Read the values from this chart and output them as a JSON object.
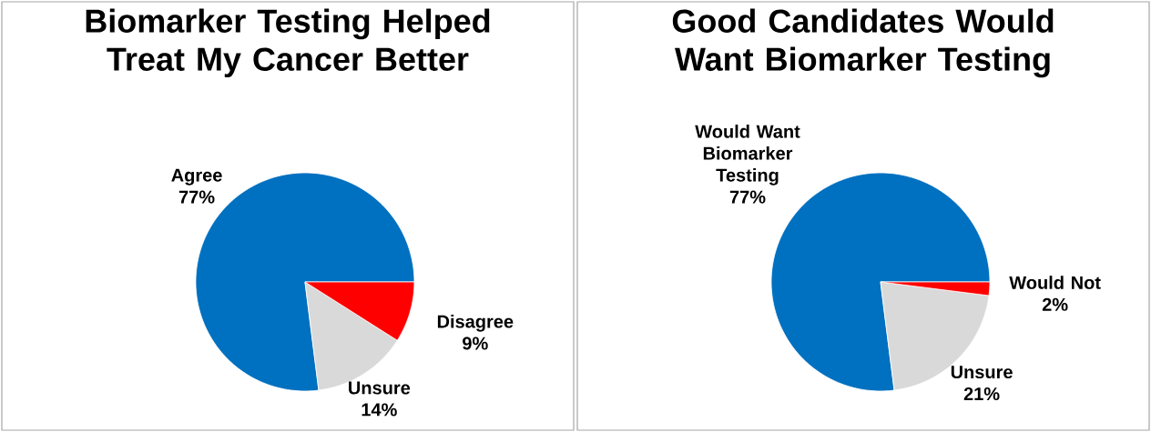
{
  "chart_data": [
    {
      "type": "pie",
      "title": "Biomarker Testing Helped Treat My Cancer Better",
      "categories": [
        "Agree",
        "Unsure",
        "Disagree"
      ],
      "values": [
        77,
        14,
        9
      ],
      "colors": [
        "#0070c0",
        "#d9d9d9",
        "#ff0000"
      ],
      "data_labels": true,
      "value_labels": [
        "77%",
        "14%",
        "9%"
      ]
    },
    {
      "type": "pie",
      "title": "Good Candidates Would Want Biomarker Testing",
      "categories": [
        "Would Want Biomarker Testing",
        "Unsure",
        "Would Not"
      ],
      "values": [
        77,
        21,
        2
      ],
      "colors": [
        "#0070c0",
        "#d9d9d9",
        "#ff0000"
      ],
      "data_labels": true,
      "value_labels": [
        "77%",
        "21%",
        "2%"
      ]
    }
  ]
}
